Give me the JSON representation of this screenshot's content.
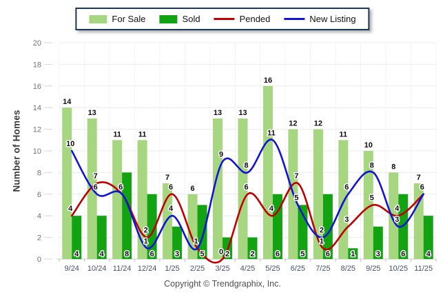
{
  "chart_data": {
    "type": "combo",
    "categories": [
      "9/24",
      "10/24",
      "11/24",
      "12/24",
      "1/25",
      "2/25",
      "3/25",
      "4/25",
      "5/25",
      "6/25",
      "7/25",
      "8/25",
      "9/25",
      "10/25",
      "11/25"
    ],
    "series": [
      {
        "name": "For Sale",
        "type": "bar",
        "color": "#A6D780",
        "values": [
          14,
          13,
          11,
          11,
          7,
          6,
          13,
          13,
          16,
          12,
          12,
          11,
          10,
          8,
          7
        ]
      },
      {
        "name": "Sold",
        "type": "bar",
        "color": "#12A212",
        "values": [
          4,
          4,
          8,
          6,
          3,
          5,
          2,
          2,
          6,
          5,
          6,
          1,
          3,
          6,
          4
        ]
      },
      {
        "name": "Pended",
        "type": "line",
        "color": "#C00000",
        "values": [
          4,
          7,
          6,
          2,
          6,
          1,
          0,
          6,
          4,
          7,
          1,
          3,
          5,
          4,
          6
        ]
      },
      {
        "name": "New Listing",
        "type": "line",
        "color": "#1212D9",
        "values": [
          10,
          6,
          6,
          1,
          4,
          1,
          9,
          8,
          11,
          5,
          2,
          6,
          8,
          3,
          6
        ]
      }
    ],
    "title": "",
    "xlabel": "",
    "ylabel": "Number of Homes",
    "ylim": [
      0,
      20
    ],
    "ytick_step": 2,
    "grid": true,
    "legend_position": "top-center"
  },
  "footer": {
    "copyright": "Copyright © Trendgraphix, Inc."
  }
}
